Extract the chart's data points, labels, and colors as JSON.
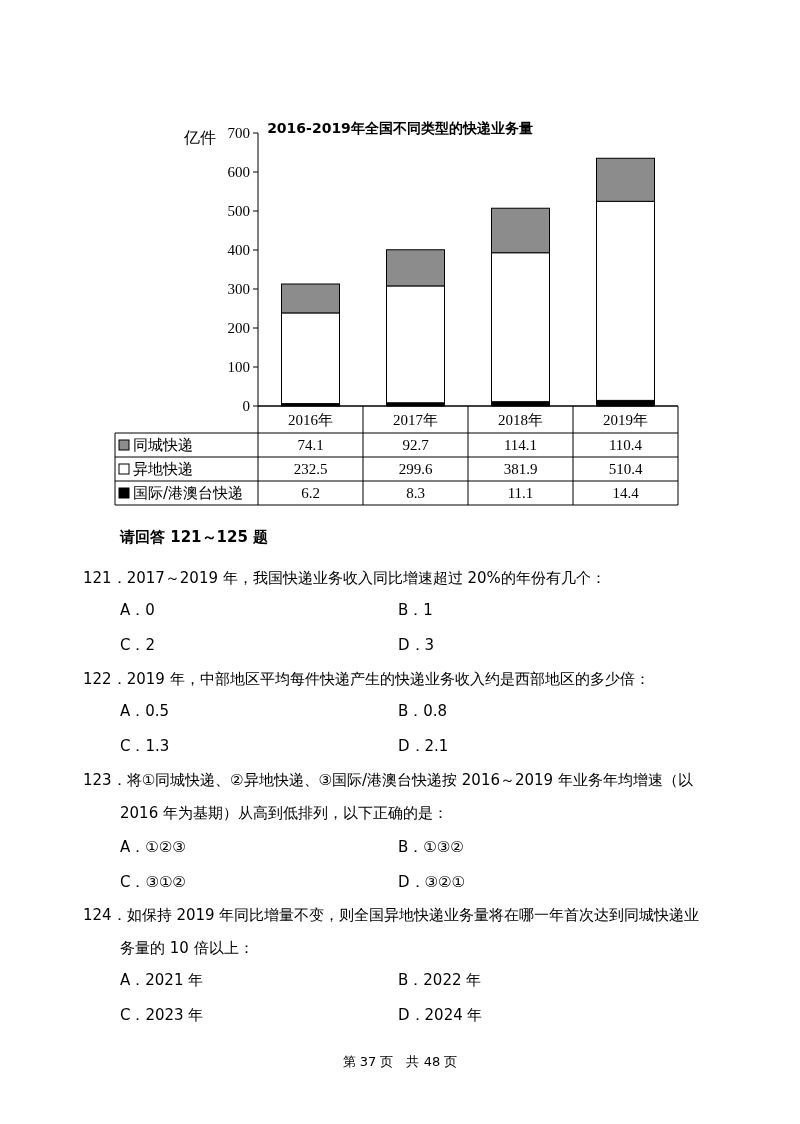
{
  "chart_data": {
    "type": "bar",
    "stacked": true,
    "title": "2016-2019年全国不同类型的快递业务量",
    "ylabel": "亿件",
    "categories": [
      "2016年",
      "2017年",
      "2018年",
      "2019年"
    ],
    "series": [
      {
        "name": "国际/港澳台快递",
        "color": "#000000",
        "values": [
          6.2,
          8.3,
          11.1,
          14.4
        ]
      },
      {
        "name": "异地快递",
        "color": "#ffffff",
        "values": [
          232.5,
          299.6,
          381.9,
          510.4
        ]
      },
      {
        "name": "同城快递",
        "color": "#8c8c8c",
        "values": [
          74.1,
          92.7,
          114.1,
          110.4
        ]
      }
    ],
    "ylim": [
      0,
      700
    ],
    "yticks": [
      0,
      100,
      200,
      300,
      400,
      500,
      600,
      700
    ],
    "data_labels": true,
    "legend": "bottom left",
    "annotations": [
      "请回答 121～125 题",
      "121．2017～2019 年，我国快递业务收入同比增速超过 20%的年份有几个：",
      "A．0",
      "B．1",
      "C．2",
      "D．3",
      "122．2019 年，中部地区平均每件快递产生的快递业务收入约是西部地区的多少倍：",
      "A．0.5",
      "B．0.8",
      "C．1.3",
      "D．2.1",
      "123．将①同城快递、②异地快递、③国际/港澳台快递按 2016～2019 年业务年均增速（以",
      "2016 年为基期）从高到低排列，以下正确的是：",
      "A．①②③",
      "B．①③②",
      "C．③①②",
      "D．③②①",
      "124．如保持 2019 年同比增量不变，则全国异地快递业务量将在哪一年首次达到同城快递业",
      "务量的 10 倍以上：",
      "A．2021 年",
      "B．2022 年",
      "C．2023 年",
      "D．2024 年",
      "第 37 页　共 48 页"
    ]
  }
}
